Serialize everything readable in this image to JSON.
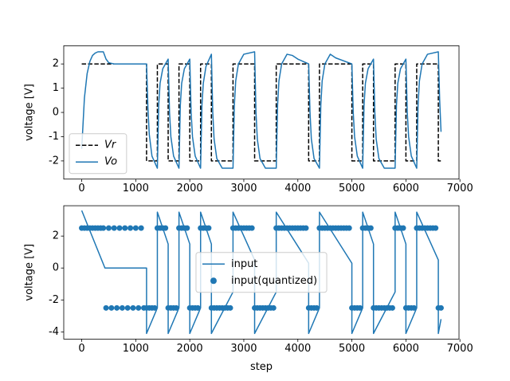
{
  "chart_data": [
    {
      "type": "line",
      "ylabel": "voltage [V]",
      "legend": "lower left",
      "xlim": [
        -332.5,
        6982.5
      ],
      "ylim": [
        -2.75,
        2.75
      ],
      "xticks": [
        0,
        1000,
        2000,
        3000,
        4000,
        5000,
        6000,
        7000
      ],
      "yticks": [
        -2,
        -1,
        0,
        1,
        2
      ],
      "series": [
        {
          "name": "Vr",
          "color": "#000000",
          "style": "dashed",
          "kind": "line",
          "x": [
            0,
            1200,
            1200,
            1400,
            1400,
            1600,
            1600,
            1800,
            1800,
            2000,
            2000,
            2200,
            2200,
            2400,
            2400,
            2800,
            2800,
            3200,
            3200,
            3600,
            3600,
            4200,
            4200,
            4400,
            4400,
            5000,
            5000,
            5200,
            5200,
            5400,
            5400,
            5800,
            5800,
            6000,
            6000,
            6200,
            6200,
            6600,
            6600,
            6650
          ],
          "values": [
            2,
            2,
            -2,
            -2,
            2,
            2,
            -2,
            -2,
            2,
            2,
            -2,
            -2,
            2,
            2,
            -2,
            -2,
            2,
            2,
            -2,
            -2,
            2,
            2,
            -2,
            -2,
            2,
            2,
            -2,
            -2,
            2,
            2,
            -2,
            -2,
            2,
            2,
            -2,
            -2,
            2,
            2,
            -2,
            -2
          ]
        },
        {
          "name": "Vo",
          "color": "#1f77b4",
          "style": "solid",
          "kind": "line",
          "x": [
            0,
            50,
            100,
            150,
            200,
            250,
            300,
            400,
            450,
            500,
            600,
            1200,
            1225,
            1250,
            1300,
            1400,
            1425,
            1450,
            1500,
            1600,
            1625,
            1650,
            1700,
            1800,
            1825,
            1850,
            1900,
            2000,
            2025,
            2050,
            2100,
            2200,
            2225,
            2250,
            2300,
            2400,
            2425,
            2450,
            2500,
            2600,
            2800,
            2825,
            2850,
            2900,
            3000,
            3200,
            3225,
            3250,
            3300,
            3400,
            3600,
            3625,
            3650,
            3700,
            3800,
            3900,
            4000,
            4200,
            4225,
            4250,
            4300,
            4400,
            4425,
            4450,
            4500,
            4600,
            4700,
            5000,
            5025,
            5050,
            5100,
            5200,
            5225,
            5250,
            5300,
            5400,
            5425,
            5450,
            5500,
            5600,
            5800,
            5825,
            5850,
            5900,
            6000,
            6025,
            6050,
            6100,
            6200,
            6225,
            6250,
            6300,
            6400,
            6600,
            6625,
            6650
          ],
          "values": [
            -1.5,
            0.6,
            1.6,
            2.1,
            2.35,
            2.45,
            2.5,
            2.5,
            2.2,
            2.05,
            2.0,
            2.0,
            0.2,
            -0.9,
            -1.8,
            -2.3,
            0.3,
            1.2,
            1.8,
            2.2,
            0,
            -1.0,
            -1.8,
            -2.3,
            0.3,
            1.2,
            1.8,
            2.2,
            0,
            -1.0,
            -1.8,
            -2.3,
            0.3,
            1.2,
            1.9,
            2.4,
            0,
            -1.1,
            -1.9,
            -2.3,
            -2.3,
            0.3,
            1.3,
            2.0,
            2.4,
            2.5,
            0,
            -1.1,
            -1.9,
            -2.3,
            -2.3,
            0.3,
            1.3,
            2.0,
            2.4,
            2.35,
            2.2,
            2.0,
            0,
            -1.1,
            -1.9,
            -2.3,
            0.3,
            1.3,
            2.0,
            2.4,
            2.25,
            2.0,
            0,
            -1.0,
            -1.8,
            -2.3,
            0.3,
            1.2,
            1.8,
            2.2,
            0,
            -1.1,
            -1.9,
            -2.3,
            -2.3,
            0.3,
            1.2,
            1.8,
            2.2,
            0,
            -1.0,
            -1.8,
            -2.3,
            0.3,
            1.3,
            2.0,
            2.4,
            2.5,
            0.5,
            -0.8
          ]
        }
      ]
    },
    {
      "type": "line",
      "ylabel": "voltage [V]",
      "xlabel": "step",
      "legend": "center",
      "xlim": [
        -332.5,
        6982.5
      ],
      "ylim": [
        -4.45,
        3.9
      ],
      "xticks": [
        0,
        1000,
        2000,
        3000,
        4000,
        5000,
        6000,
        7000
      ],
      "yticks": [
        -4,
        -2,
        0,
        2
      ],
      "series": [
        {
          "name": "input",
          "color": "#1f77b4",
          "style": "solid",
          "kind": "line",
          "x": [
            0,
            430,
            1200,
            1200,
            1400,
            1400,
            1600,
            1600,
            1800,
            1800,
            2000,
            2000,
            2200,
            2200,
            2400,
            2400,
            2800,
            2800,
            3200,
            3200,
            3600,
            3600,
            4200,
            4200,
            4400,
            4400,
            5000,
            5000,
            5200,
            5200,
            5400,
            5400,
            5800,
            5800,
            6000,
            6000,
            6200,
            6200,
            6600,
            6600,
            6650
          ],
          "values": [
            3.6,
            0,
            0,
            -4.1,
            -2.5,
            3.5,
            1.5,
            -4.1,
            -2.5,
            3.5,
            1.5,
            -4.1,
            -2.5,
            3.5,
            1.5,
            -4.1,
            -1.5,
            3.5,
            0.5,
            -4.1,
            -1.5,
            3.5,
            0.3,
            -4.1,
            -2.5,
            3.5,
            0.3,
            -4.1,
            -2.5,
            3.5,
            1.5,
            -4.1,
            -1.5,
            3.5,
            1.5,
            -4.1,
            -2.5,
            3.5,
            0.5,
            -4.1,
            -3.2
          ]
        },
        {
          "name": "input(quantized)",
          "color": "#1f77b4",
          "kind": "scatter",
          "x": [
            0,
            50,
            100,
            150,
            200,
            250,
            300,
            350,
            400,
            450,
            500,
            550,
            600,
            650,
            700,
            750,
            800,
            850,
            900,
            950,
            1000,
            1050,
            1100,
            1150,
            1200,
            1250,
            1300,
            1350,
            1400,
            1450,
            1500,
            1550,
            1600,
            1650,
            1700,
            1750,
            1800,
            1850,
            1900,
            1950,
            2000,
            2050,
            2100,
            2150,
            2200,
            2250,
            2300,
            2350,
            2400,
            2450,
            2500,
            2550,
            2600,
            2650,
            2700,
            2750,
            2800,
            2850,
            2900,
            2950,
            3000,
            3050,
            3100,
            3150,
            3200,
            3250,
            3300,
            3350,
            3400,
            3450,
            3500,
            3550,
            3600,
            3650,
            3700,
            3750,
            3800,
            3850,
            3900,
            3950,
            4000,
            4050,
            4100,
            4150,
            4200,
            4250,
            4300,
            4350,
            4400,
            4450,
            4500,
            4550,
            4600,
            4650,
            4700,
            4750,
            4800,
            4850,
            4900,
            4950,
            5000,
            5050,
            5100,
            5150,
            5200,
            5250,
            5300,
            5350,
            5400,
            5450,
            5500,
            5550,
            5600,
            5650,
            5700,
            5750,
            5800,
            5850,
            5900,
            5950,
            6000,
            6050,
            6100,
            6150,
            6200,
            6250,
            6300,
            6350,
            6400,
            6450,
            6500,
            6550,
            6600,
            6650
          ],
          "values": [
            2.5,
            2.5,
            2.5,
            2.5,
            2.5,
            2.5,
            2.5,
            2.5,
            2.5,
            -2.5,
            2.5,
            -2.5,
            2.5,
            -2.5,
            2.5,
            -2.5,
            2.5,
            -2.5,
            2.5,
            -2.5,
            2.5,
            -2.5,
            2.5,
            -2.5,
            -2.5,
            -2.5,
            -2.5,
            -2.5,
            2.5,
            2.5,
            2.5,
            2.5,
            -2.5,
            -2.5,
            -2.5,
            -2.5,
            2.5,
            2.5,
            2.5,
            2.5,
            -2.5,
            -2.5,
            -2.5,
            -2.5,
            2.5,
            2.5,
            2.5,
            2.5,
            -2.5,
            -2.5,
            -2.5,
            -2.5,
            -2.5,
            -2.5,
            -2.5,
            -2.5,
            2.5,
            2.5,
            2.5,
            2.5,
            2.5,
            2.5,
            2.5,
            2.5,
            -2.5,
            -2.5,
            -2.5,
            -2.5,
            -2.5,
            -2.5,
            -2.5,
            -2.5,
            2.5,
            2.5,
            2.5,
            2.5,
            2.5,
            2.5,
            2.5,
            2.5,
            2.5,
            2.5,
            2.5,
            2.5,
            -2.5,
            -2.5,
            -2.5,
            -2.5,
            2.5,
            2.5,
            2.5,
            2.5,
            2.5,
            2.5,
            2.5,
            2.5,
            2.5,
            2.5,
            2.5,
            2.5,
            -2.5,
            -2.5,
            -2.5,
            -2.5,
            2.5,
            2.5,
            2.5,
            2.5,
            -2.5,
            -2.5,
            -2.5,
            -2.5,
            -2.5,
            -2.5,
            -2.5,
            -2.5,
            2.5,
            2.5,
            2.5,
            2.5,
            -2.5,
            -2.5,
            -2.5,
            -2.5,
            2.5,
            2.5,
            2.5,
            2.5,
            2.5,
            2.5,
            2.5,
            2.5,
            -2.5,
            -2.5
          ]
        }
      ]
    }
  ]
}
